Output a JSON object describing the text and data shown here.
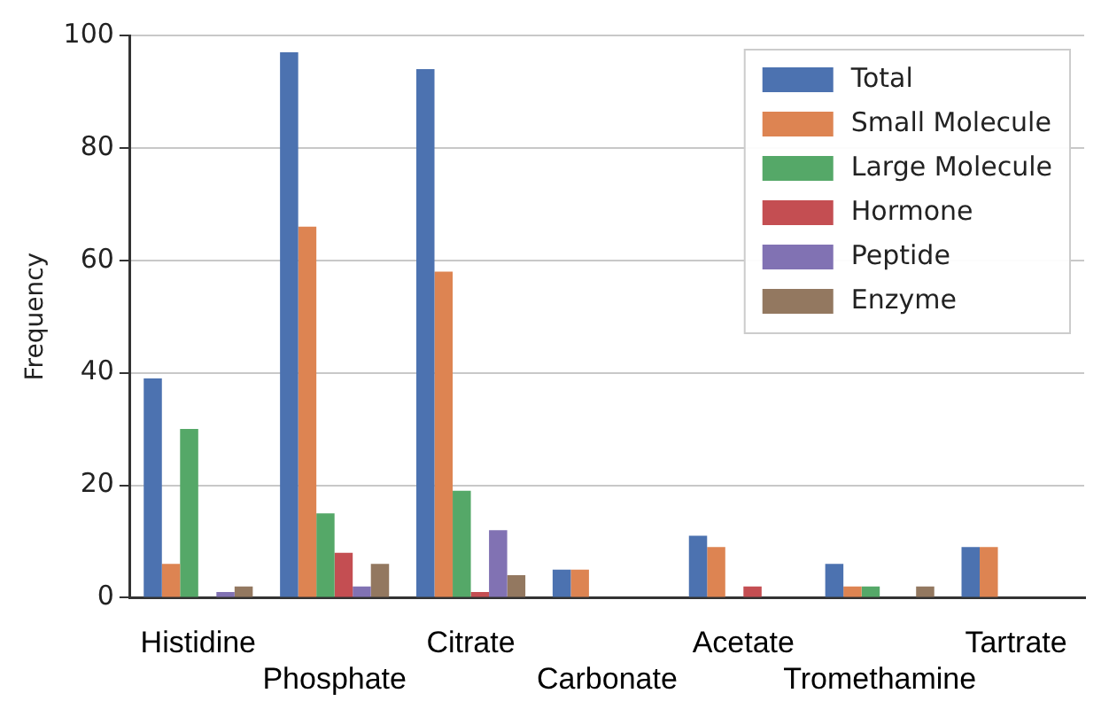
{
  "chart_data": {
    "type": "bar",
    "ylabel": "Frequency",
    "categories": [
      "Histidine",
      "Phosphate",
      "Citrate",
      "Carbonate",
      "Acetate",
      "Tromethamine",
      "Tartrate"
    ],
    "series": [
      {
        "name": "Total",
        "color": "#4c72b0",
        "values": [
          39,
          97,
          94,
          5,
          11,
          6,
          9
        ]
      },
      {
        "name": "Small Molecule",
        "color": "#dd8452",
        "values": [
          6,
          66,
          58,
          5,
          9,
          2,
          9
        ]
      },
      {
        "name": "Large Molecule",
        "color": "#55a868",
        "values": [
          30,
          15,
          19,
          0,
          0,
          2,
          0
        ]
      },
      {
        "name": "Hormone",
        "color": "#c44e52",
        "values": [
          0,
          8,
          1,
          0,
          2,
          0,
          0
        ]
      },
      {
        "name": "Peptide",
        "color": "#8172b3",
        "values": [
          1,
          2,
          12,
          0,
          0,
          0,
          0
        ]
      },
      {
        "name": "Enzyme",
        "color": "#937860",
        "values": [
          2,
          6,
          4,
          0,
          0,
          2,
          0
        ]
      }
    ],
    "ylim": [
      0,
      100
    ],
    "yticks": [
      0,
      20,
      40,
      60,
      80,
      100
    ],
    "grid": "y",
    "legend": "top right"
  }
}
